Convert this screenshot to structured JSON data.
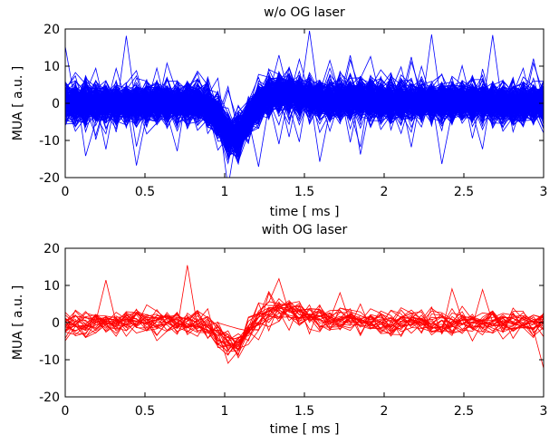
{
  "chart_data": [
    {
      "type": "line",
      "title": "w/o OG laser",
      "xlabel": "time [ ms ]",
      "ylabel": "MUA [ a.u. ]",
      "xlim": [
        0,
        3
      ],
      "ylim": [
        -20,
        20
      ],
      "x_ticks": [
        "0",
        "0.5",
        "1",
        "1.5",
        "2",
        "2.5",
        "3"
      ],
      "y_ticks": [
        "-20",
        "-10",
        "0",
        "10",
        "20"
      ],
      "color": "#0000ff",
      "grid": false,
      "legend": "none",
      "trace_count": 260,
      "noise_amplitude": 4.5,
      "x": [
        0,
        0.125,
        0.25,
        0.375,
        0.5,
        0.625,
        0.75,
        0.875,
        1.0,
        1.05,
        1.125,
        1.25,
        1.375,
        1.5,
        1.625,
        1.75,
        1.875,
        2.0,
        2.125,
        2.25,
        2.375,
        2.5,
        2.625,
        2.75,
        2.875,
        3.0
      ],
      "mean_waveform": [
        0,
        0,
        0,
        0,
        0,
        0,
        0,
        0.5,
        -6,
        -12,
        -6,
        2,
        3,
        2,
        1,
        1,
        1,
        0.5,
        0.5,
        0.5,
        0.5,
        0.5,
        0.5,
        0,
        0,
        0
      ]
    },
    {
      "type": "line",
      "title": "with OG laser",
      "xlabel": "time [ ms ]",
      "ylabel": "MUA [ a.u. ]",
      "xlim": [
        0,
        3
      ],
      "ylim": [
        -20,
        20
      ],
      "x_ticks": [
        "0",
        "0.5",
        "1",
        "1.5",
        "2",
        "2.5",
        "3"
      ],
      "y_ticks": [
        "-20",
        "-10",
        "0",
        "10",
        "20"
      ],
      "color": "#ff0000",
      "grid": false,
      "legend": "none",
      "trace_count": 25,
      "noise_amplitude": 3.2,
      "x": [
        0,
        0.125,
        0.25,
        0.375,
        0.5,
        0.625,
        0.75,
        0.875,
        1.0,
        1.05,
        1.125,
        1.25,
        1.375,
        1.5,
        1.625,
        1.75,
        1.875,
        2.0,
        2.125,
        2.25,
        2.375,
        2.5,
        2.625,
        2.75,
        2.875,
        3.0
      ],
      "mean_waveform": [
        0,
        0,
        0,
        0,
        0,
        0,
        0,
        0,
        -5,
        -8,
        -4,
        3,
        4,
        2,
        1,
        1,
        0.5,
        0,
        0,
        0,
        0,
        0,
        0,
        0,
        0,
        0
      ]
    }
  ]
}
